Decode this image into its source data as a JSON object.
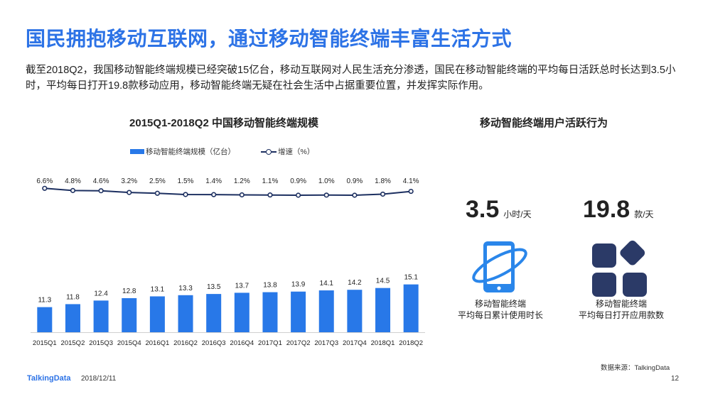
{
  "page": {
    "title": "国民拥抱移动互联网，通过移动智能终端丰富生活方式",
    "intro": "截至2018Q2，我国移动智能终端规模已经突破15亿台，移动互联网对人民生活充分渗透，国民在移动智能终端的平均每日活跃总时长达到3.5小时，平均每日打开19.8款移动应用，移动智能终端无疑在社会生活中占据重要位置，并发挥实际作用。"
  },
  "chart_data": {
    "type": "bar",
    "title": "2015Q1-2018Q2 中国移动智能终端规模",
    "categories": [
      "2015Q1",
      "2015Q2",
      "2015Q3",
      "2015Q4",
      "2016Q1",
      "2016Q2",
      "2016Q3",
      "2016Q4",
      "2017Q1",
      "2017Q2",
      "2017Q3",
      "2017Q4",
      "2018Q1",
      "2018Q2"
    ],
    "series": [
      {
        "name": "移动智能终端规模（亿台）",
        "type": "bar",
        "color": "#2878e8",
        "values": [
          11.3,
          11.8,
          12.4,
          12.8,
          13.1,
          13.3,
          13.5,
          13.7,
          13.8,
          13.9,
          14.1,
          14.2,
          14.5,
          15.1
        ]
      },
      {
        "name": "增速（%）",
        "type": "line",
        "color": "#1c2f60",
        "values": [
          6.6,
          4.8,
          4.6,
          3.2,
          2.5,
          1.5,
          1.4,
          1.2,
          1.1,
          0.9,
          1.0,
          0.9,
          1.8,
          4.1
        ],
        "labels": [
          "6.6%",
          "4.8%",
          "4.6%",
          "3.2%",
          "2.5%",
          "1.5%",
          "1.4%",
          "1.2%",
          "1.1%",
          "0.9%",
          "1.0%",
          "0.9%",
          "1.8%",
          "4.1%"
        ]
      }
    ],
    "legend_position": "top",
    "grid": false
  },
  "right_panel": {
    "title": "移动智能终端用户活跃行为",
    "stats": [
      {
        "value": "3.5",
        "unit": "小时/天",
        "caption_line1": "移动智能终端",
        "caption_line2": "平均每日累计使用时长",
        "icon": "phone-icon"
      },
      {
        "value": "19.8",
        "unit": "款/天",
        "caption_line1": "移动智能终端",
        "caption_line2": "平均每日打开应用款数",
        "icon": "apps-grid-icon"
      }
    ]
  },
  "footer": {
    "source": "数据来源：TalkingData",
    "logo": "TalkingData",
    "date": "2018/12/11",
    "page_number": "12"
  },
  "colors": {
    "accent": "#2d73e6",
    "bar": "#2878e8",
    "line": "#1c2f60",
    "icon_dark": "#2b3a67"
  }
}
